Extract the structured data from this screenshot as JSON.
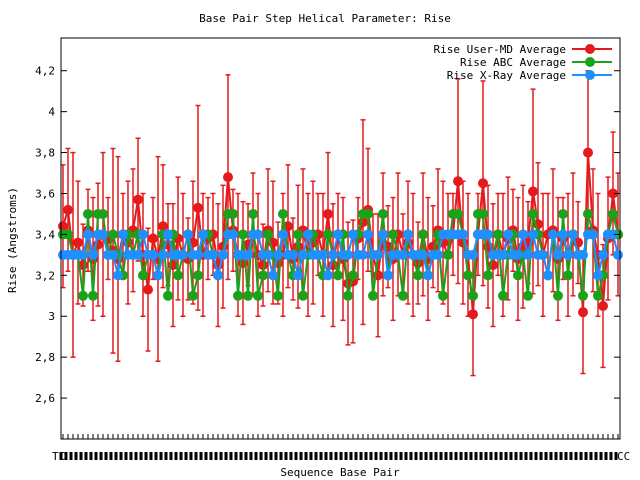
{
  "chart_data": {
    "type": "line",
    "title": "Base Pair Step Helical Parameter: Rise",
    "xlabel": "Sequence Base Pair",
    "ylabel": "Rise (Angstroms)",
    "ylim": [
      2.4,
      4.36
    ],
    "yticks": [
      "2,6",
      "2,8",
      "3",
      "3,2",
      "3,4",
      "3,6",
      "3,8",
      "4",
      "4,2"
    ],
    "ytick_values": [
      2.6,
      2.8,
      3.0,
      3.2,
      3.4,
      3.6,
      3.8,
      4.0,
      4.2
    ],
    "x_first_label": "TC",
    "x_last_label": "CC",
    "grid": false,
    "legend_position": "top-right",
    "series": [
      {
        "name": "Rise User-MD Average",
        "color": "#e41a1c",
        "values": [
          3.44,
          3.52,
          3.3,
          3.36,
          3.25,
          3.42,
          3.28,
          3.35,
          3.4,
          3.38,
          3.32,
          3.28,
          3.4,
          3.36,
          3.42,
          3.57,
          3.3,
          3.13,
          3.38,
          3.28,
          3.44,
          3.35,
          3.25,
          3.38,
          3.3,
          3.28,
          3.36,
          3.53,
          3.3,
          3.38,
          3.4,
          3.25,
          3.34,
          3.68,
          3.42,
          3.3,
          3.26,
          3.35,
          3.4,
          3.3,
          3.25,
          3.42,
          3.36,
          3.26,
          3.3,
          3.44,
          3.28,
          3.34,
          3.42,
          3.3,
          3.36,
          3.4,
          3.3,
          3.5,
          3.25,
          3.4,
          3.28,
          3.16,
          3.17,
          3.38,
          3.46,
          3.52,
          3.3,
          3.2,
          3.4,
          3.34,
          3.28,
          3.4,
          3.3,
          3.36,
          3.3,
          3.26,
          3.4,
          3.28,
          3.34,
          3.42,
          3.36,
          3.3,
          3.4,
          3.66,
          3.36,
          3.3,
          3.01,
          3.4,
          3.65,
          3.34,
          3.25,
          3.4,
          3.3,
          3.38,
          3.42,
          3.28,
          3.34,
          3.36,
          3.61,
          3.45,
          3.3,
          3.4,
          3.42,
          3.28,
          3.38,
          3.3,
          3.4,
          3.36,
          3.02,
          3.8,
          3.42,
          3.3,
          3.05,
          3.38,
          3.6,
          3.4
        ]
      },
      {
        "name": "Rise ABC Average",
        "color": "#1aa31a",
        "values": [
          3.4,
          3.4,
          3.3,
          3.3,
          3.1,
          3.5,
          3.1,
          3.5,
          3.5,
          3.3,
          3.4,
          3.3,
          3.2,
          3.4,
          3.3,
          3.4,
          3.2,
          3.3,
          3.3,
          3.2,
          3.4,
          3.1,
          3.4,
          3.2,
          3.3,
          3.4,
          3.1,
          3.2,
          3.4,
          3.4,
          3.3,
          3.2,
          3.3,
          3.5,
          3.5,
          3.1,
          3.4,
          3.1,
          3.5,
          3.1,
          3.2,
          3.4,
          3.3,
          3.1,
          3.5,
          3.3,
          3.2,
          3.4,
          3.1,
          3.3,
          3.4,
          3.3,
          3.2,
          3.4,
          3.3,
          3.2,
          3.4,
          3.1,
          3.2,
          3.4,
          3.5,
          3.5,
          3.1,
          3.3,
          3.5,
          3.2,
          3.4,
          3.3,
          3.1,
          3.4,
          3.3,
          3.2,
          3.4,
          3.2,
          3.3,
          3.4,
          3.1,
          3.3,
          3.5,
          3.5,
          3.4,
          3.2,
          3.1,
          3.5,
          3.5,
          3.2,
          3.3,
          3.4,
          3.1,
          3.3,
          3.4,
          3.2,
          3.3,
          3.1,
          3.5,
          3.4,
          3.3,
          3.2,
          3.4,
          3.1,
          3.5,
          3.2,
          3.4,
          3.3,
          3.1,
          3.5,
          3.4,
          3.1,
          3.2,
          3.4,
          3.5,
          3.4
        ]
      },
      {
        "name": "Rise X-Ray Average",
        "color": "#1e90ff",
        "values": [
          3.3,
          3.3,
          3.3,
          3.3,
          3.3,
          3.4,
          3.3,
          3.4,
          3.4,
          3.3,
          3.3,
          3.2,
          3.4,
          3.3,
          3.3,
          3.3,
          3.4,
          3.3,
          3.3,
          3.2,
          3.3,
          3.4,
          3.3,
          3.3,
          3.3,
          3.4,
          3.3,
          3.3,
          3.4,
          3.3,
          3.3,
          3.2,
          3.3,
          3.4,
          3.4,
          3.3,
          3.3,
          3.3,
          3.4,
          3.4,
          3.3,
          3.3,
          3.2,
          3.3,
          3.4,
          3.3,
          3.3,
          3.2,
          3.3,
          3.4,
          3.3,
          3.3,
          3.3,
          3.2,
          3.3,
          3.4,
          3.3,
          3.3,
          3.4,
          3.3,
          3.3,
          3.4,
          3.3,
          3.3,
          3.4,
          3.2,
          3.3,
          3.3,
          3.3,
          3.4,
          3.3,
          3.3,
          3.3,
          3.2,
          3.3,
          3.3,
          3.4,
          3.4,
          3.4,
          3.4,
          3.4,
          3.3,
          3.3,
          3.4,
          3.4,
          3.4,
          3.3,
          3.3,
          3.3,
          3.4,
          3.3,
          3.3,
          3.4,
          3.3,
          3.4,
          3.3,
          3.3,
          3.2,
          3.4,
          3.3,
          3.4,
          3.3,
          3.4,
          3.3,
          3.3,
          3.4,
          3.4,
          3.2,
          3.3,
          3.4,
          3.4,
          3.3
        ]
      }
    ],
    "error_half_range": [
      0.3,
      0.3,
      0.5,
      0.3,
      0.2,
      0.2,
      0.3,
      0.3,
      0.4,
      0.2,
      0.5,
      0.5,
      0.2,
      0.3,
      0.3,
      0.3,
      0.3,
      0.3,
      0.2,
      0.5,
      0.3,
      0.2,
      0.3,
      0.3,
      0.3,
      0.2,
      0.3,
      0.5,
      0.3,
      0.2,
      0.2,
      0.3,
      0.3,
      0.5,
      0.2,
      0.3,
      0.3,
      0.2,
      0.3,
      0.3,
      0.2,
      0.3,
      0.3,
      0.2,
      0.3,
      0.3,
      0.2,
      0.3,
      0.3,
      0.3,
      0.3,
      0.2,
      0.3,
      0.3,
      0.3,
      0.2,
      0.3,
      0.3,
      0.3,
      0.2,
      0.5,
      0.3,
      0.2,
      0.3,
      0.3,
      0.2,
      0.3,
      0.3,
      0.2,
      0.3,
      0.3,
      0.2,
      0.3,
      0.3,
      0.2,
      0.3,
      0.3,
      0.3,
      0.2,
      0.5,
      0.3,
      0.3,
      0.3,
      0.2,
      0.5,
      0.3,
      0.3,
      0.2,
      0.3,
      0.3,
      0.2,
      0.3,
      0.3,
      0.2,
      0.5,
      0.3,
      0.3,
      0.2,
      0.3,
      0.3,
      0.2,
      0.3,
      0.3,
      0.2,
      0.3,
      0.4,
      0.3,
      0.3,
      0.3,
      0.3,
      0.3,
      0.3
    ]
  }
}
